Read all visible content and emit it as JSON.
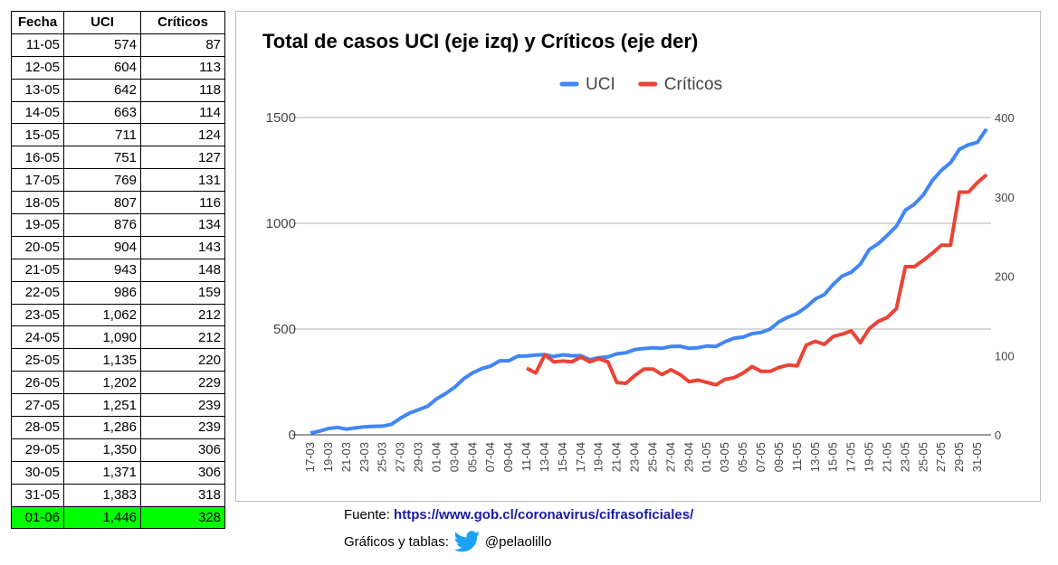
{
  "table": {
    "header": [
      "Fecha",
      "UCI",
      "Críticos"
    ],
    "rows": [
      [
        "11-05",
        "574",
        "87"
      ],
      [
        "12-05",
        "604",
        "113"
      ],
      [
        "13-05",
        "642",
        "118"
      ],
      [
        "14-05",
        "663",
        "114"
      ],
      [
        "15-05",
        "711",
        "124"
      ],
      [
        "16-05",
        "751",
        "127"
      ],
      [
        "17-05",
        "769",
        "131"
      ],
      [
        "18-05",
        "807",
        "116"
      ],
      [
        "19-05",
        "876",
        "134"
      ],
      [
        "20-05",
        "904",
        "143"
      ],
      [
        "21-05",
        "943",
        "148"
      ],
      [
        "22-05",
        "986",
        "159"
      ],
      [
        "23-05",
        "1,062",
        "212"
      ],
      [
        "24-05",
        "1,090",
        "212"
      ],
      [
        "25-05",
        "1,135",
        "220"
      ],
      [
        "26-05",
        "1,202",
        "229"
      ],
      [
        "27-05",
        "1,251",
        "239"
      ],
      [
        "28-05",
        "1,286",
        "239"
      ],
      [
        "29-05",
        "1,350",
        "306"
      ],
      [
        "30-05",
        "1,371",
        "306"
      ],
      [
        "31-05",
        "1,383",
        "318"
      ],
      [
        "01-06",
        "1,446",
        "328"
      ]
    ]
  },
  "chart_data": {
    "type": "line",
    "title": "Total de casos UCI (eje izq) y Críticos (eje der)",
    "categories": [
      "17-03",
      null,
      "19-03",
      null,
      "21-03",
      null,
      "23-03",
      null,
      "25-03",
      null,
      "27-03",
      null,
      "29-03",
      null,
      "01-04",
      null,
      "03-04",
      null,
      "05-04",
      null,
      "07-04",
      null,
      "09-04",
      null,
      "11-04",
      null,
      "13-04",
      null,
      "15-04",
      null,
      "17-04",
      null,
      "19-04",
      null,
      "21-04",
      null,
      "23-04",
      null,
      "25-04",
      null,
      "27-04",
      null,
      "29-04",
      null,
      "01-05",
      null,
      "03-05",
      null,
      "05-05",
      null,
      "07-05",
      null,
      "09-05",
      null,
      "11-05",
      null,
      "13-05",
      null,
      "15-05",
      null,
      "17-05",
      null,
      "19-05",
      null,
      "21-05",
      null,
      "23-05",
      null,
      "25-05",
      null,
      "27-05",
      null,
      "29-05",
      null,
      "31-05",
      null
    ],
    "series": [
      {
        "name": "UCI",
        "color": "#4285f4",
        "values": [
          8,
          17,
          30,
          35,
          27,
          33,
          38,
          40,
          41,
          50,
          79,
          103,
          119,
          135,
          170,
          195,
          225,
          265,
          293,
          313,
          325,
          350,
          350,
          372,
          373,
          377,
          379,
          370,
          378,
          374,
          374,
          355,
          365,
          368,
          383,
          388,
          403,
          408,
          411,
          409,
          418,
          419,
          409,
          412,
          420,
          418,
          440,
          457,
          462,
          478,
          484,
          500,
          535,
          557,
          574,
          604,
          642,
          663,
          711,
          751,
          769,
          807,
          876,
          904,
          943,
          986,
          1062,
          1090,
          1135,
          1202,
          1251,
          1286,
          1350,
          1371,
          1383,
          1446
        ]
      },
      {
        "name": "Críticos",
        "color": "#ea4335",
        "axis": "y2",
        "values": [
          null,
          null,
          null,
          null,
          null,
          null,
          null,
          null,
          null,
          null,
          null,
          null,
          null,
          null,
          null,
          null,
          null,
          null,
          null,
          null,
          null,
          null,
          null,
          null,
          84,
          78,
          101,
          92,
          93,
          92,
          98,
          92,
          96,
          92,
          66,
          65,
          75,
          83,
          83,
          76,
          82,
          76,
          67,
          69,
          66,
          63,
          70,
          72,
          78,
          86,
          80,
          80,
          85,
          88,
          87,
          113,
          118,
          114,
          124,
          127,
          131,
          116,
          134,
          143,
          148,
          159,
          212,
          212,
          220,
          229,
          239,
          239,
          306,
          306,
          318,
          328
        ]
      }
    ],
    "ylim": [
      0,
      1500
    ],
    "yticks": [
      0,
      500,
      1000,
      1500
    ],
    "y2lim": [
      0,
      400
    ],
    "y2ticks": [
      0,
      100,
      200,
      300,
      400
    ],
    "grid": true,
    "legend": "top"
  },
  "footer": {
    "source_label": "Fuente:",
    "source_url": "https://www.gob.cl/coronavirus/cifrasoficiales/",
    "credit_label": "Gráficos y tablas:",
    "handle": "@pelaolillo"
  }
}
